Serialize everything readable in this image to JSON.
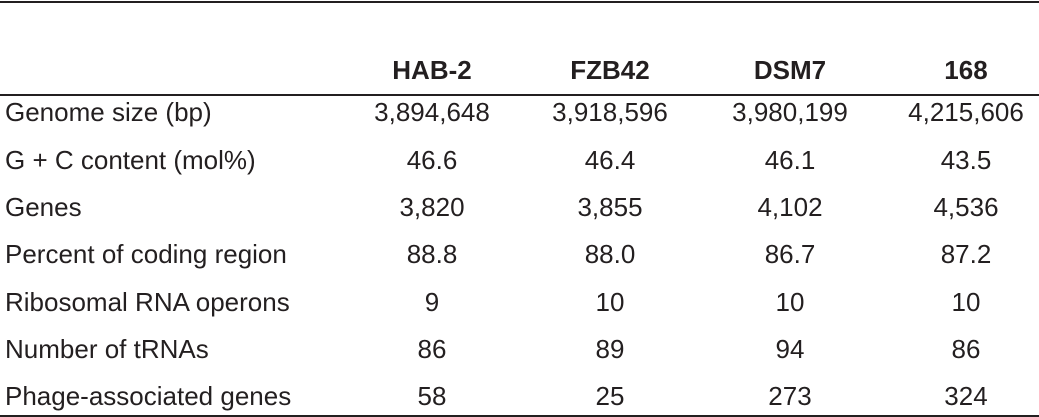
{
  "table": {
    "header": [
      "HAB-2",
      "FZB42",
      "DSM7",
      "168"
    ],
    "rows": [
      [
        "Genome size (bp)",
        "3,894,648",
        "3,918,596",
        "3,980,199",
        "4,215,606"
      ],
      [
        "G + C content (mol%)",
        "46.6",
        "46.4",
        "46.1",
        "43.5"
      ],
      [
        "Genes",
        "3,820",
        "3,855",
        "4,102",
        "4,536"
      ],
      [
        "Percent of coding region",
        "88.8",
        "88.0",
        "86.7",
        "87.2"
      ],
      [
        "Ribosomal RNA operons",
        "9",
        "10",
        "10",
        "10"
      ],
      [
        "Number of tRNAs",
        "86",
        "89",
        "94",
        "86"
      ],
      [
        "Phage-associated genes",
        "58",
        "25",
        "273",
        "324"
      ]
    ]
  }
}
